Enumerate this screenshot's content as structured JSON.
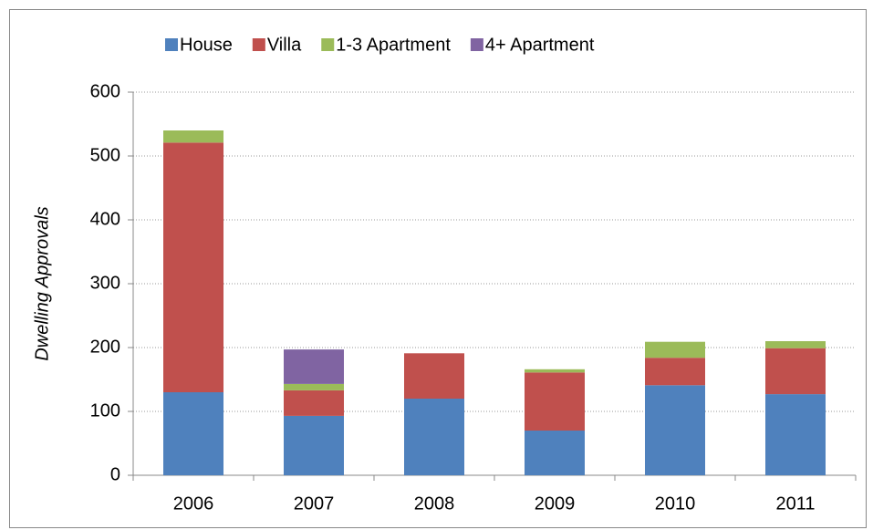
{
  "chart_data": {
    "type": "stacked_bar",
    "y_label": "Dwelling Approvals",
    "categories": [
      "2006",
      "2007",
      "2008",
      "2009",
      "2010",
      "2011"
    ],
    "series": [
      {
        "name": "House",
        "color": "#4f81bd",
        "values": [
          130,
          93,
          120,
          70,
          141,
          127
        ]
      },
      {
        "name": "Villa",
        "color": "#c0504d",
        "values": [
          391,
          40,
          71,
          91,
          43,
          72
        ]
      },
      {
        "name": "1-3 Apartment",
        "color": "#9bbb59",
        "values": [
          19,
          10,
          0,
          5,
          25,
          11
        ]
      },
      {
        "name": "4+ Apartment",
        "color": "#8064a2",
        "values": [
          0,
          54,
          0,
          0,
          0,
          0
        ]
      }
    ],
    "ylim": [
      0,
      600
    ],
    "yticks": [
      0,
      100,
      200,
      300,
      400,
      500,
      600
    ],
    "grid": true,
    "legend": "top"
  }
}
